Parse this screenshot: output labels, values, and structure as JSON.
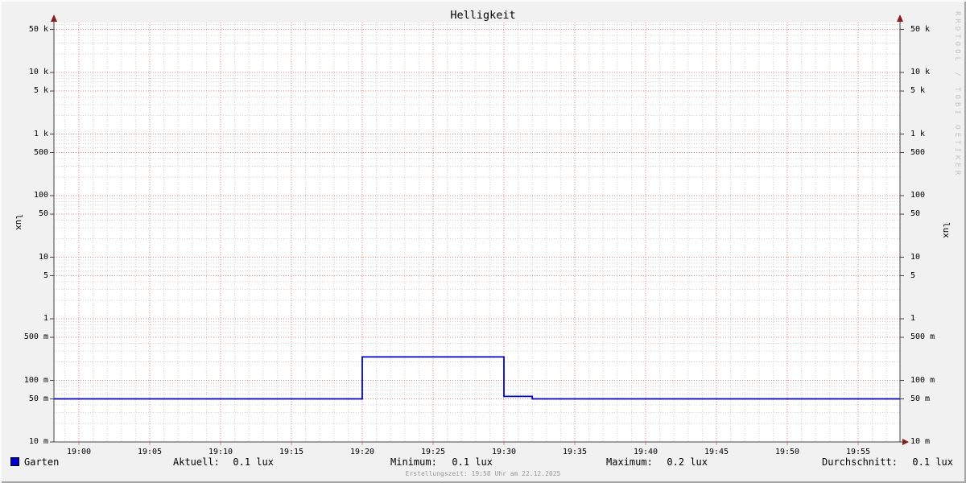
{
  "title": "Helligkeit",
  "watermark": "RRDTOOL / TOBI OETIKER",
  "footer": "Erstellungszeit: 19:58 Uhr am 22.12.2025",
  "axis": {
    "left_label": "lux",
    "right_label": "lux"
  },
  "legend": {
    "series_label": "Garten",
    "series_color": "#0000cc",
    "stats": [
      {
        "label": "Aktuell:",
        "value": "0.1 lux"
      },
      {
        "label": "Minimum:",
        "value": "0.1 lux"
      },
      {
        "label": "Maximum:",
        "value": "0.2 lux"
      },
      {
        "label": "Durchschnitt:",
        "value": "0.1 lux"
      }
    ]
  },
  "chart_data": {
    "type": "line",
    "title": "Helligkeit",
    "ylabel": "lux",
    "y_scale": "log",
    "ylim": [
      0.01,
      65000
    ],
    "x_axis": {
      "start": "18:58",
      "end": "19:58",
      "tick_interval_min": 5,
      "minor_interval_min": 1
    },
    "y_ticks": [
      {
        "value": 50000,
        "label": "50 k"
      },
      {
        "value": 10000,
        "label": "10 k"
      },
      {
        "value": 5000,
        "label": "5 k"
      },
      {
        "value": 1000,
        "label": "1 k"
      },
      {
        "value": 500,
        "label": "500"
      },
      {
        "value": 100,
        "label": "100"
      },
      {
        "value": 50,
        "label": "50"
      },
      {
        "value": 10,
        "label": "10"
      },
      {
        "value": 5,
        "label": "5"
      },
      {
        "value": 1,
        "label": "1"
      },
      {
        "value": 0.5,
        "label": "500 m"
      },
      {
        "value": 0.1,
        "label": "100 m"
      },
      {
        "value": 0.05,
        "label": "50 m"
      },
      {
        "value": 0.01,
        "label": "10 m"
      }
    ],
    "x_ticks": [
      {
        "min": 0,
        "label": "19:00"
      },
      {
        "min": 5,
        "label": "19:05"
      },
      {
        "min": 10,
        "label": "19:10"
      },
      {
        "min": 15,
        "label": "19:15"
      },
      {
        "min": 20,
        "label": "19:20"
      },
      {
        "min": 25,
        "label": "19:25"
      },
      {
        "min": 30,
        "label": "19:30"
      },
      {
        "min": 35,
        "label": "19:35"
      },
      {
        "min": 40,
        "label": "19:40"
      },
      {
        "min": 45,
        "label": "19:45"
      },
      {
        "min": 50,
        "label": "19:50"
      },
      {
        "min": 55,
        "label": "19:55"
      }
    ],
    "series": [
      {
        "name": "Garten",
        "color": "#0000cc",
        "unit": "lux",
        "points": [
          {
            "t": "18:58",
            "lux": 0.05
          },
          {
            "t": "19:20",
            "lux": 0.05
          },
          {
            "t": "19:20",
            "lux": 0.24
          },
          {
            "t": "19:30",
            "lux": 0.24
          },
          {
            "t": "19:30",
            "lux": 0.055
          },
          {
            "t": "19:32",
            "lux": 0.055
          },
          {
            "t": "19:32",
            "lux": 0.05
          },
          {
            "t": "19:58",
            "lux": 0.05
          }
        ]
      }
    ],
    "stats": {
      "aktuell": "0.1 lux",
      "minimum": "0.1 lux",
      "maximum": "0.2 lux",
      "durchschnitt": "0.1 lux"
    },
    "grid": {
      "major_color": "#e87e7e",
      "minor_color": "#cfcfcf",
      "axis_color": "#444444",
      "arrow_color": "#8b1a1a",
      "canvas": "#ffffff",
      "background": "#f1f1f1",
      "legend_position": "bottom"
    }
  }
}
